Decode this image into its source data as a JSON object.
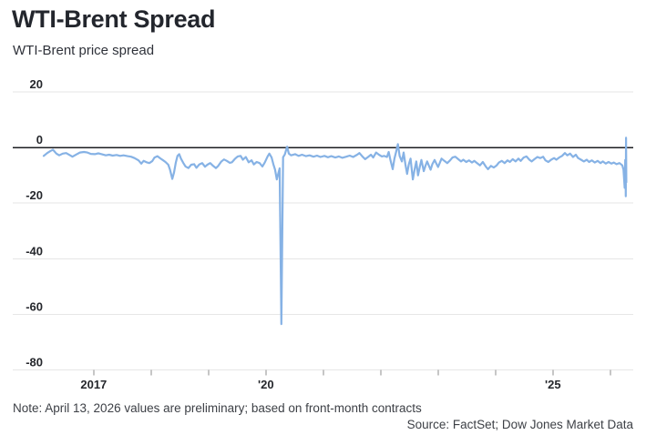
{
  "header": {
    "title": "WTI-Brent Spread",
    "subtitle": "WTI-Brent price spread"
  },
  "footer": {
    "note": "Note: April 13, 2026 values are preliminary; based on front-month contracts",
    "source": "Source: FactSet; Dow Jones Market Data"
  },
  "colors": {
    "title": "#23262d",
    "body_text": "#3d4046"
  },
  "chart_data": {
    "type": "line",
    "title": "WTI-Brent Spread",
    "subtitle": "WTI-Brent price spread",
    "xlabel": "",
    "ylabel": "",
    "xlim": [
      2015.59,
      2026.4
    ],
    "ylim": [
      -80,
      20
    ],
    "grid": true,
    "zero_line": true,
    "legend": "none",
    "line_color": "#86b2e5",
    "grid_color": "#e6e6e6",
    "zero_line_color": "#1c1e22",
    "tick_color": "#8e8e8e",
    "label_color": "#25272c",
    "y_ticks": [
      {
        "value": 20,
        "label": "20"
      },
      {
        "value": 0,
        "label": "0"
      },
      {
        "value": -20,
        "label": "-20"
      },
      {
        "value": -40,
        "label": "-40"
      },
      {
        "value": -60,
        "label": "-60"
      },
      {
        "value": -80,
        "label": "-80"
      }
    ],
    "x_ticks": [
      {
        "value": 2017,
        "label": "2017"
      },
      {
        "value": 2018,
        "label": ""
      },
      {
        "value": 2019,
        "label": ""
      },
      {
        "value": 2020,
        "label": "'20"
      },
      {
        "value": 2021,
        "label": ""
      },
      {
        "value": 2022,
        "label": ""
      },
      {
        "value": 2023,
        "label": ""
      },
      {
        "value": 2024,
        "label": ""
      },
      {
        "value": 2025,
        "label": "'25"
      },
      {
        "value": 2026,
        "label": ""
      }
    ],
    "series": [
      {
        "name": "WTI-Brent price spread",
        "x": [
          2016.13,
          2016.19,
          2016.25,
          2016.29,
          2016.35,
          2016.4,
          2016.46,
          2016.52,
          2016.59,
          2016.63,
          2016.7,
          2016.76,
          2016.83,
          2016.89,
          2016.95,
          2017.02,
          2017.08,
          2017.14,
          2017.21,
          2017.27,
          2017.33,
          2017.4,
          2017.46,
          2017.52,
          2017.59,
          2017.65,
          2017.71,
          2017.78,
          2017.83,
          2017.87,
          2017.92,
          2017.97,
          2018.02,
          2018.06,
          2018.11,
          2018.16,
          2018.21,
          2018.25,
          2018.3,
          2018.33,
          2018.37,
          2018.4,
          2018.43,
          2018.46,
          2018.49,
          2018.52,
          2018.56,
          2018.6,
          2018.65,
          2018.7,
          2018.75,
          2018.79,
          2018.84,
          2018.89,
          2018.94,
          2018.98,
          2019.03,
          2019.08,
          2019.13,
          2019.17,
          2019.22,
          2019.27,
          2019.32,
          2019.37,
          2019.41,
          2019.46,
          2019.51,
          2019.56,
          2019.6,
          2019.65,
          2019.7,
          2019.75,
          2019.79,
          2019.84,
          2019.89,
          2019.94,
          2019.98,
          2020.03,
          2020.06,
          2020.1,
          2020.13,
          2020.16,
          2020.19,
          2020.22,
          2020.24,
          2020.27,
          2020.3,
          2020.33,
          2020.37,
          2020.4,
          2020.44,
          2020.51,
          2020.57,
          2020.63,
          2020.7,
          2020.76,
          2020.83,
          2020.89,
          2020.95,
          2021.02,
          2021.08,
          2021.14,
          2021.21,
          2021.27,
          2021.33,
          2021.4,
          2021.46,
          2021.52,
          2021.59,
          2021.63,
          2021.68,
          2021.73,
          2021.78,
          2021.83,
          2021.87,
          2021.92,
          2021.97,
          2022.02,
          2022.06,
          2022.11,
          2022.14,
          2022.17,
          2022.21,
          2022.24,
          2022.27,
          2022.3,
          2022.33,
          2022.37,
          2022.4,
          2022.43,
          2022.46,
          2022.49,
          2022.52,
          2022.56,
          2022.59,
          2022.62,
          2022.65,
          2022.68,
          2022.71,
          2022.75,
          2022.78,
          2022.81,
          2022.84,
          2022.87,
          2022.9,
          2022.94,
          2022.97,
          2023.0,
          2023.03,
          2023.06,
          2023.11,
          2023.16,
          2023.21,
          2023.25,
          2023.3,
          2023.35,
          2023.4,
          2023.44,
          2023.49,
          2023.54,
          2023.59,
          2023.63,
          2023.68,
          2023.73,
          2023.78,
          2023.83,
          2023.87,
          2023.92,
          2023.97,
          2024.02,
          2024.06,
          2024.11,
          2024.16,
          2024.21,
          2024.25,
          2024.3,
          2024.35,
          2024.4,
          2024.44,
          2024.49,
          2024.54,
          2024.59,
          2024.63,
          2024.68,
          2024.73,
          2024.78,
          2024.83,
          2024.87,
          2024.92,
          2024.97,
          2025.02,
          2025.06,
          2025.11,
          2025.16,
          2025.21,
          2025.25,
          2025.3,
          2025.35,
          2025.4,
          2025.44,
          2025.49,
          2025.54,
          2025.59,
          2025.63,
          2025.68,
          2025.73,
          2025.78,
          2025.83,
          2025.87,
          2025.92,
          2025.97,
          2026.02,
          2026.06,
          2026.11,
          2026.16,
          2026.21,
          2026.23,
          2026.25,
          2026.26,
          2026.265,
          2026.27,
          2026.275,
          2026.28
        ],
        "y": [
          -3.0,
          -2.0,
          -1.2,
          -0.8,
          -2.2,
          -2.8,
          -2.2,
          -2.0,
          -2.8,
          -3.3,
          -2.5,
          -1.8,
          -1.6,
          -1.8,
          -2.3,
          -2.4,
          -2.1,
          -2.4,
          -2.8,
          -2.6,
          -2.9,
          -2.7,
          -3.0,
          -2.8,
          -3.1,
          -3.3,
          -3.8,
          -4.6,
          -5.8,
          -4.8,
          -5.3,
          -5.6,
          -4.9,
          -3.6,
          -3.1,
          -3.9,
          -4.6,
          -5.2,
          -6.2,
          -8.0,
          -11.3,
          -9.0,
          -5.5,
          -3.0,
          -2.4,
          -4.0,
          -5.5,
          -6.8,
          -7.4,
          -6.2,
          -6.0,
          -7.3,
          -6.1,
          -5.6,
          -6.9,
          -6.2,
          -5.6,
          -6.6,
          -7.4,
          -6.6,
          -5.1,
          -4.3,
          -4.8,
          -5.5,
          -5.3,
          -4.1,
          -3.2,
          -3.0,
          -4.4,
          -3.4,
          -5.3,
          -4.6,
          -6.1,
          -5.2,
          -5.6,
          -6.8,
          -5.4,
          -3.2,
          -2.2,
          -3.6,
          -6.0,
          -8.0,
          -11.5,
          -9.0,
          -7.5,
          -63.5,
          -3.5,
          -2.5,
          0.3,
          -2.2,
          -2.8,
          -2.4,
          -3.0,
          -2.6,
          -3.1,
          -2.8,
          -3.3,
          -2.9,
          -3.4,
          -3.0,
          -3.5,
          -3.1,
          -3.6,
          -3.2,
          -3.7,
          -3.3,
          -2.9,
          -3.4,
          -2.6,
          -2.0,
          -3.2,
          -4.2,
          -3.4,
          -2.6,
          -3.6,
          -1.8,
          -2.6,
          -3.2,
          -3.0,
          -3.4,
          -1.6,
          -4.5,
          -7.8,
          -4.0,
          -1.5,
          1.2,
          -3.0,
          -5.0,
          -1.8,
          -6.0,
          -9.5,
          -6.0,
          -4.0,
          -11.5,
          -8.0,
          -5.0,
          -10.0,
          -7.0,
          -4.5,
          -8.5,
          -6.5,
          -5.0,
          -6.5,
          -8.0,
          -6.0,
          -4.5,
          -5.8,
          -7.0,
          -5.5,
          -4.0,
          -4.8,
          -5.6,
          -4.6,
          -3.6,
          -3.3,
          -4.2,
          -5.0,
          -4.4,
          -5.2,
          -4.6,
          -5.4,
          -4.8,
          -5.6,
          -6.4,
          -5.2,
          -6.8,
          -7.8,
          -6.6,
          -7.2,
          -6.4,
          -5.4,
          -4.8,
          -5.6,
          -4.6,
          -5.2,
          -4.2,
          -5.0,
          -4.0,
          -4.8,
          -3.6,
          -3.2,
          -4.4,
          -5.0,
          -4.2,
          -3.4,
          -3.8,
          -3.3,
          -4.6,
          -5.2,
          -4.4,
          -3.8,
          -4.4,
          -3.6,
          -3.0,
          -2.0,
          -2.8,
          -2.2,
          -3.4,
          -2.6,
          -3.8,
          -4.4,
          -5.0,
          -4.4,
          -5.2,
          -4.6,
          -5.4,
          -4.8,
          -5.6,
          -5.0,
          -5.8,
          -5.2,
          -5.8,
          -5.4,
          -6.0,
          -5.6,
          -6.4,
          -8.0,
          -14.5,
          -4.5,
          -7.5,
          -17.5,
          3.5,
          -12.5
        ]
      }
    ]
  }
}
